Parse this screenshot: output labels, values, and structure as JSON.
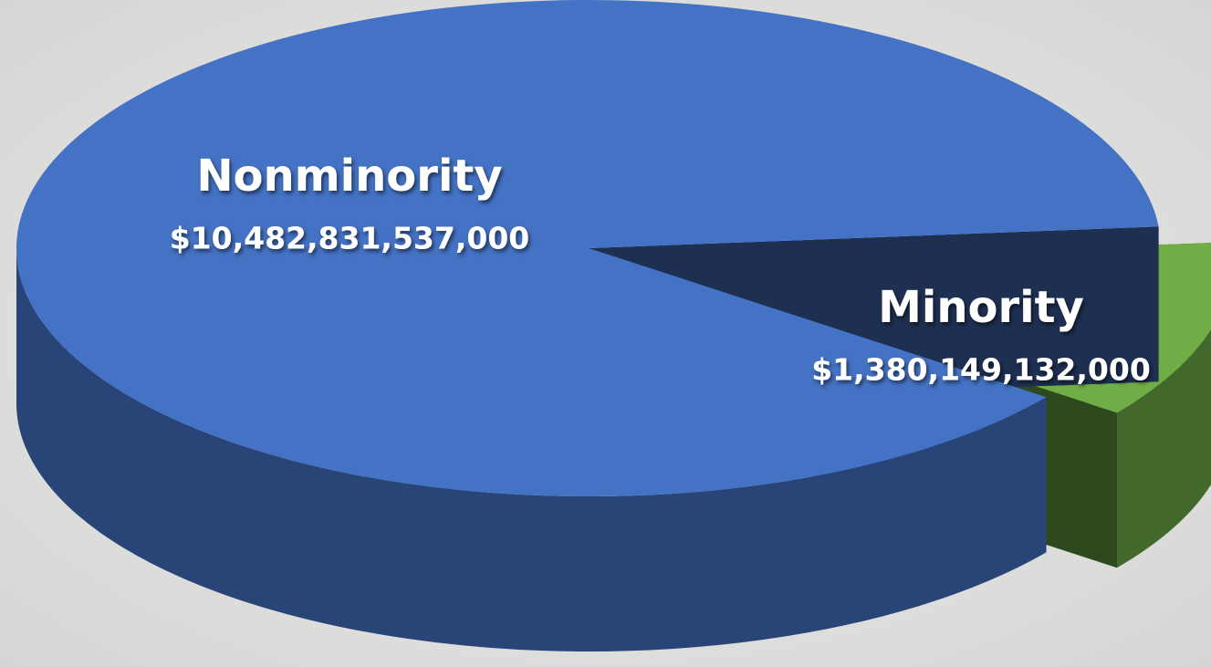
{
  "chart_data": {
    "type": "pie3d",
    "categories": [
      "Minority",
      "Nonminority"
    ],
    "values": [
      1380149132000,
      10482831537000
    ],
    "value_labels": [
      "$1,380,149,132,000",
      "$10,482,831,537,000"
    ],
    "colors": [
      "#70ad47",
      "#4472c4"
    ]
  }
}
